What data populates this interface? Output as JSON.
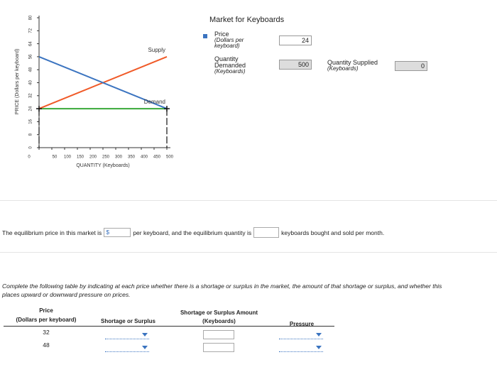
{
  "chart_data": {
    "type": "line",
    "x": [
      0,
      500
    ],
    "series": [
      {
        "name": "Supply",
        "color": "#f05a28",
        "values": [
          24,
          56
        ]
      },
      {
        "name": "Demand",
        "color": "#3b74c0",
        "values": [
          56,
          24
        ]
      }
    ],
    "xlim": [
      0,
      500
    ],
    "ylim": [
      0,
      80
    ],
    "xticks": [
      0,
      50,
      100,
      150,
      200,
      250,
      300,
      350,
      400,
      450,
      500
    ],
    "yticks": [
      0,
      8,
      16,
      24,
      32,
      40,
      48,
      56,
      64,
      72,
      80
    ],
    "xlabel": "QUANTITY (Keyboards)",
    "ylabel": "PRICE (Dollars per keyboard)",
    "price_line_color": "#3aa83a"
  },
  "panel": {
    "title": "Market for Keyboards",
    "price": {
      "label": "Price",
      "unit": "(Dollars per keyboard)",
      "value": 24
    },
    "quantity_demanded": {
      "label": "Quantity Demanded",
      "unit": "(Keyboards)",
      "value": 500
    },
    "quantity_supplied": {
      "label": "Quantity Supplied",
      "unit": "(Keyboards)",
      "value": 0
    }
  },
  "question": {
    "before": "The equilibrium price in this market is",
    "currency": "$",
    "middle": "per keyboard, and the equilibrium quantity is",
    "after": "keyboards bought and sold per month."
  },
  "instructions": "Complete the following table by indicating at each price whether there is a shortage or surplus in the market, the amount of that shortage or surplus, and whether this places upward or downward pressure on prices.",
  "table": {
    "headers": [
      [
        "Price",
        "(Dollars per keyboard)"
      ],
      [
        "Shortage or Surplus"
      ],
      [
        "Shortage or Surplus Amount",
        "(Keyboards)"
      ],
      [
        "Pressure"
      ]
    ],
    "rows": [
      32,
      48
    ]
  }
}
